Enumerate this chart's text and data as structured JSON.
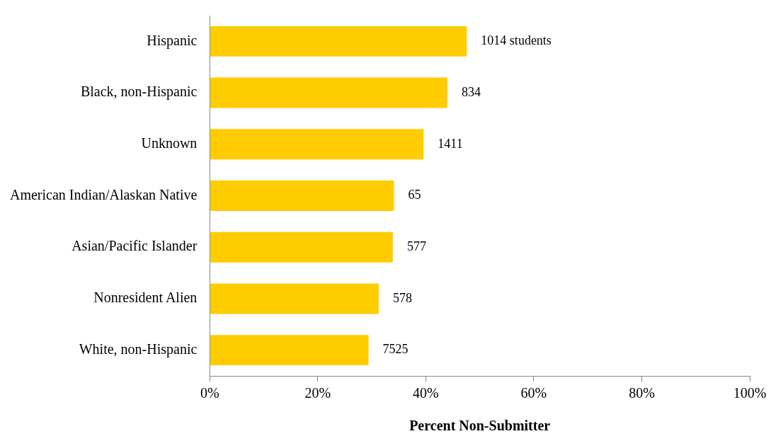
{
  "chart_data": {
    "type": "bar",
    "orientation": "horizontal",
    "xlabel": "Percent Non-Submitter",
    "categories": [
      "Hispanic",
      "Black, non-Hispanic",
      "Unknown",
      "American Indian/Alaskan Native",
      "Asian/Pacific Islander",
      "Nonresident Alien",
      "White, non-Hispanic"
    ],
    "values": [
      47.6,
      44.0,
      39.6,
      34.1,
      33.9,
      31.3,
      29.4
    ],
    "annotations": [
      {
        "text": "1014 students",
        "x": 47.6,
        "y": "Hispanic"
      },
      {
        "text": "834",
        "x": 44.0,
        "y": "Black, non-Hispanic"
      },
      {
        "text": "1411",
        "x": 39.6,
        "y": "Unknown"
      },
      {
        "text": "65",
        "x": 34.1,
        "y": "American Indian/Alaskan Native"
      },
      {
        "text": "577",
        "x": 33.9,
        "y": "Asian/Pacific Islander"
      },
      {
        "text": "578",
        "x": 31.3,
        "y": "Nonresident Alien"
      },
      {
        "text": "7525",
        "x": 29.4,
        "y": "White, non-Hispanic"
      }
    ],
    "color": "#ffcc00",
    "xlim": [
      0,
      100
    ],
    "xticks": [
      {
        "value": 0,
        "label": "0%"
      },
      {
        "value": 20,
        "label": "20%"
      },
      {
        "value": 40,
        "label": "40%"
      },
      {
        "value": 60,
        "label": "60%"
      },
      {
        "value": 80,
        "label": "80%"
      },
      {
        "value": 100,
        "label": "100%"
      }
    ],
    "grid": false,
    "legend": false
  }
}
